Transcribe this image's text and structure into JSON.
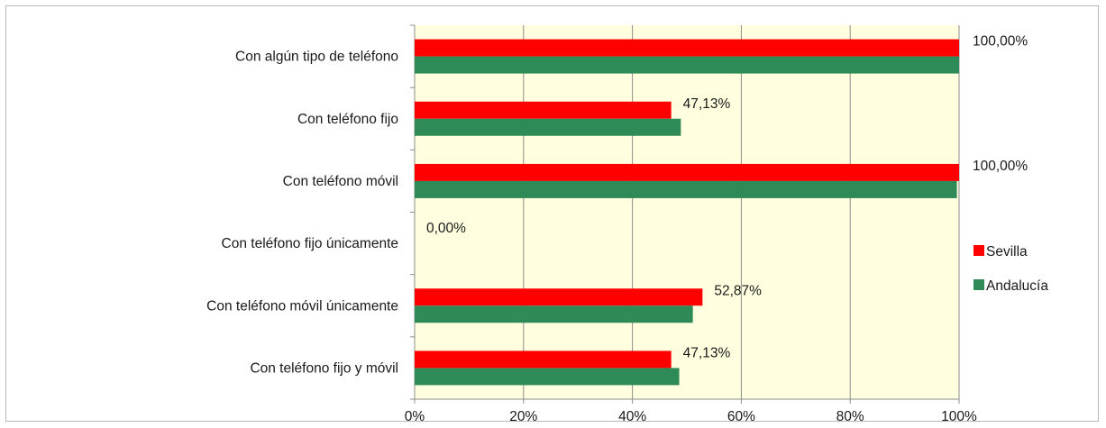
{
  "chart_data": {
    "type": "bar",
    "orientation": "horizontal",
    "categories": [
      "Con algún tipo de teléfono",
      "Con teléfono fijo",
      "Con teléfono móvil",
      "Con teléfono fijo únicamente",
      "Con teléfono móvil únicamente",
      "Con teléfono fijo y móvil"
    ],
    "series": [
      {
        "name": "Sevilla",
        "color": "#ff0000",
        "values": [
          100.0,
          47.13,
          100.0,
          0.0,
          52.87,
          47.13
        ],
        "data_labels": [
          "100,00%",
          "47,13%",
          "100,00%",
          "0,00%",
          "52,87%",
          "47,13%"
        ]
      },
      {
        "name": "Andalucía",
        "color": "#2e8b57",
        "values": [
          100.0,
          48.9,
          99.6,
          0.0,
          51.1,
          48.6
        ]
      }
    ],
    "xlim": [
      0,
      100
    ],
    "x_ticks": [
      "0%",
      "20%",
      "40%",
      "60%",
      "80%",
      "100%"
    ],
    "plot_background": "#ffffe0",
    "gridlines": "vertical",
    "legend_position": "right"
  }
}
